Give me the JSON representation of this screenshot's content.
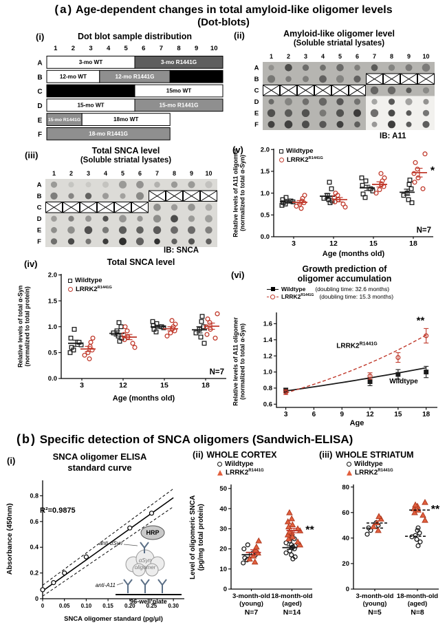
{
  "panel_a": {
    "tag": "(a)",
    "title": "Age-dependent changes in total amyloid-like oligomer levels",
    "subtitle": "(Dot-blots)",
    "i": {
      "tag": "(i)",
      "title": "Dot blot sample distribution",
      "cols": [
        "1",
        "2",
        "3",
        "4",
        "5",
        "6",
        "7",
        "8",
        "9",
        "10"
      ],
      "rows": [
        "A",
        "B",
        "C",
        "D",
        "E",
        "F"
      ],
      "blocks": [
        {
          "row": 0,
          "c1": 1,
          "c2": 5,
          "fill": "white",
          "text": "3-mo WT"
        },
        {
          "row": 0,
          "c1": 6,
          "c2": 10,
          "fill": "darkgray",
          "text": "3-mo R1441G"
        },
        {
          "row": 1,
          "c1": 1,
          "c2": 3,
          "fill": "white",
          "text": "12-mo WT"
        },
        {
          "row": 1,
          "c1": 4,
          "c2": 7,
          "fill": "gray",
          "text": "12-mo R1441G"
        },
        {
          "row": 1,
          "c1": 8,
          "c2": 10,
          "fill": "black",
          "text": ""
        },
        {
          "row": 2,
          "c1": 1,
          "c2": 5,
          "fill": "black",
          "text": ""
        },
        {
          "row": 2,
          "c1": 6,
          "c2": 10,
          "fill": "white",
          "text": "15mo WT"
        },
        {
          "row": 3,
          "c1": 1,
          "c2": 5,
          "fill": "white",
          "text": "15-mo WT"
        },
        {
          "row": 3,
          "c1": 6,
          "c2": 10,
          "fill": "gray",
          "text": "15-mo R1441G"
        },
        {
          "row": 4,
          "c1": 1,
          "c2": 2,
          "fill": "gray",
          "text": "15-mo R1441G"
        },
        {
          "row": 4,
          "c1": 3,
          "c2": 7,
          "fill": "white",
          "text": "18mo WT"
        },
        {
          "row": 5,
          "c1": 1,
          "c2": 7,
          "fill": "gray",
          "text": "18-mo R1441G"
        }
      ]
    },
    "ii": {
      "tag": "(ii)",
      "title": "Amyloid-like oligomer level",
      "subtitle": "(Soluble striatal lysates)",
      "ib_label": "IB: A11",
      "cols": [
        "1",
        "2",
        "3",
        "4",
        "5",
        "6",
        "7",
        "8",
        "9",
        "10"
      ],
      "rows": [
        "A",
        "B",
        "C",
        "D",
        "E",
        "F"
      ],
      "crossed": [
        "B7",
        "B8",
        "B9",
        "B10",
        "C1",
        "C2",
        "C3",
        "C4",
        "C5",
        "C6"
      ],
      "bg": "#b6b5b1",
      "row_shades": [
        0.45,
        0.5,
        0.42,
        0.5,
        0.55,
        0.62
      ],
      "seed": 7,
      "white_patch": {
        "c1": 7,
        "c2": 10,
        "r1": 3,
        "r2": 5
      }
    },
    "iii": {
      "tag": "(iii)",
      "title": "Total SNCA level",
      "subtitle": "(Soluble striatal lysates)",
      "ib_label": "IB: SNCA",
      "cols": [
        "1",
        "2",
        "3",
        "4",
        "5",
        "6",
        "7",
        "8",
        "9",
        "10"
      ],
      "rows": [
        "A",
        "B",
        "C",
        "D",
        "E",
        "F"
      ],
      "crossed": [
        "B7",
        "B8",
        "B9",
        "B10",
        "C1",
        "C2",
        "C3",
        "C4",
        "C5",
        "C6"
      ],
      "bg": "#dcdbd7",
      "row_shades": [
        0.3,
        0.5,
        0.45,
        0.5,
        0.55,
        0.68
      ],
      "seed": 13
    },
    "iv": {
      "tag": "(iv)",
      "title": "Total SNCA level",
      "ylabel1": "Relative levels of total α-Syn",
      "ylabel2": "(normalized to total protein)",
      "legend": {
        "wt": "Wildtype",
        "mut_base": "LRRK2",
        "mut_sup": "R1441G"
      },
      "chart_data": {
        "type": "scatter",
        "categories": [
          "3",
          "12",
          "15",
          "18"
        ],
        "xlabel": "Age (months old)",
        "ylim": [
          0,
          2.02
        ],
        "yticks": [
          0,
          0.5,
          1,
          1.5,
          2
        ],
        "ytick_labels": [
          "0.0",
          "0.5",
          "1.0",
          "1.5",
          "2.0"
        ],
        "n_label": "N=7",
        "series": [
          {
            "name": "Wildtype",
            "marker": "square",
            "color": "#1a1a1a",
            "filled": false,
            "groups": [
              [
                0.5,
                0.55,
                0.6,
                0.65,
                0.7,
                0.78,
                0.95
              ],
              [
                0.72,
                0.78,
                0.82,
                0.88,
                0.92,
                1.0,
                1.08
              ],
              [
                0.9,
                0.95,
                0.98,
                1.0,
                1.02,
                1.06,
                1.1
              ],
              [
                0.68,
                0.8,
                0.88,
                0.95,
                1.0,
                1.1,
                1.2
              ]
            ],
            "means": [
              0.68,
              0.87,
              1.0,
              0.94
            ],
            "sems": [
              0.06,
              0.05,
              0.03,
              0.06
            ]
          },
          {
            "name": "LRRK2 R1441G",
            "marker": "circle",
            "color": "#c0392b",
            "filled": false,
            "groups": [
              [
                0.38,
                0.45,
                0.5,
                0.55,
                0.62,
                0.7,
                0.78
              ],
              [
                0.6,
                0.68,
                0.75,
                0.8,
                0.85,
                0.92,
                1.0
              ],
              [
                0.82,
                0.88,
                0.92,
                0.96,
                1.0,
                1.05,
                1.12
              ],
              [
                0.78,
                0.85,
                0.95,
                1.0,
                1.08,
                1.15,
                1.25
              ]
            ],
            "means": [
              0.57,
              0.8,
              0.96,
              1.01
            ],
            "sems": [
              0.05,
              0.05,
              0.04,
              0.06
            ]
          }
        ]
      }
    },
    "v": {
      "tag": "(v)",
      "ylabel1": "Relative levels of A11 oligomer",
      "ylabel2": "(normalized to total α-Syn)",
      "legend": {
        "wt": "Wildtype",
        "mut_base": "LRRK2",
        "mut_sup": "R1441G"
      },
      "chart_data": {
        "type": "scatter",
        "categories": [
          "3",
          "12",
          "15",
          "18"
        ],
        "xlabel": "Age (months old)",
        "ylim": [
          0,
          2.02
        ],
        "yticks": [
          0,
          0.5,
          1,
          1.5,
          2
        ],
        "ytick_labels": [
          "0.0",
          "0.5",
          "1.0",
          "1.5",
          "2.0"
        ],
        "n_label": "N=7",
        "sig": {
          "text": "*",
          "y": 1.5,
          "dx": 28
        },
        "series": [
          {
            "name": "Wildtype",
            "marker": "square",
            "color": "#1a1a1a",
            "filled": false,
            "groups": [
              [
                0.72,
                0.75,
                0.78,
                0.8,
                0.82,
                0.85,
                0.9
              ],
              [
                0.78,
                0.82,
                0.85,
                0.88,
                0.95,
                1.1,
                1.25
              ],
              [
                0.9,
                0.98,
                1.05,
                1.1,
                1.18,
                1.28,
                1.35
              ],
              [
                0.78,
                0.85,
                0.95,
                1.0,
                1.1,
                1.2,
                1.3
              ]
            ],
            "means": [
              0.8,
              0.93,
              1.12,
              1.02
            ],
            "sems": [
              0.03,
              0.06,
              0.06,
              0.07
            ]
          },
          {
            "name": "LRRK2 R1441G",
            "marker": "circle",
            "color": "#c0392b",
            "filled": false,
            "groups": [
              [
                0.65,
                0.7,
                0.75,
                0.78,
                0.82,
                0.88,
                0.95
              ],
              [
                0.68,
                0.75,
                0.8,
                0.85,
                0.9,
                0.95,
                1.0
              ],
              [
                1.0,
                1.08,
                1.15,
                1.2,
                1.28,
                1.35,
                1.45
              ],
              [
                1.1,
                1.25,
                1.35,
                1.45,
                1.55,
                1.7,
                1.9
              ]
            ],
            "means": [
              0.79,
              0.85,
              1.2,
              1.47
            ],
            "sems": [
              0.04,
              0.05,
              0.06,
              0.1
            ]
          }
        ]
      }
    },
    "vi": {
      "tag": "(vi)",
      "title1": "Growth prediction of",
      "title2": "oligomer accumulation",
      "ylabel1": "Relative levels of A11 oligomer",
      "ylabel2": "(normalized to total α-Syn)",
      "legend": {
        "wt_name": "Wildtype",
        "wt_note": "(doubling time: 32.6 months)",
        "mut_base": "LRRK2",
        "mut_sup": "R1441G",
        "mut_note": "(doubling time: 15.3 months)"
      },
      "chart_data": {
        "type": "line",
        "xlabel": "Age",
        "xlim": [
          2,
          19.2
        ],
        "xticks": [
          3,
          6,
          9,
          12,
          15,
          18
        ],
        "xtick_labels": [
          "3",
          "6",
          "9",
          "12",
          "15",
          "18"
        ],
        "ylim": [
          0.56,
          1.74
        ],
        "yticks": [
          0.6,
          0.8,
          1.0,
          1.2,
          1.4,
          1.6
        ],
        "ytick_labels": [
          "0.6",
          "0.8",
          "1.0",
          "1.2",
          "1.4",
          "1.6"
        ],
        "sig": "**",
        "series": [
          {
            "name": "Wildtype",
            "color": "#1a1a1a",
            "marker": "square",
            "filled": true,
            "style": "solid",
            "curve": {
              "y0": 0.765,
              "x0": 3,
              "doubling": 32.6
            },
            "points": [
              [
                3,
                0.77,
                0.03
              ],
              [
                12,
                0.88,
                0.05
              ],
              [
                15,
                0.97,
                0.06
              ],
              [
                18,
                1.0,
                0.07
              ]
            ],
            "label": "Wildtype",
            "label_pos": [
              15.6,
              0.86
            ]
          },
          {
            "name": "LRRK2 R1441G",
            "color": "#c0392b",
            "marker": "circle",
            "filled": false,
            "style": "dashed",
            "curve": {
              "y0": 0.74,
              "x0": 3,
              "doubling": 15.3
            },
            "points": [
              [
                3,
                0.75,
                0.03
              ],
              [
                12,
                0.95,
                0.04
              ],
              [
                15,
                1.18,
                0.06
              ],
              [
                18,
                1.45,
                0.09
              ]
            ],
            "label_base": "LRRK2",
            "label_sup": "R1441G",
            "label_pos": [
              10.6,
              1.3
            ]
          }
        ]
      }
    }
  },
  "panel_b": {
    "tag": "(b)",
    "title": "Specific detection of SNCA oligomers (Sandwich-ELISA)",
    "i": {
      "tag": "(i)",
      "title1": "SNCA oligomer ELISA",
      "title2": "standard curve",
      "r2_label": "R²=0.9875",
      "ylabel": "Absorbance (450nm)",
      "schematic": {
        "hrp": "HRP",
        "anti_asyn": "anti-αSyn",
        "oligomer1": "αSyn",
        "oligomer2": "oligomer",
        "anti_a11": "anti-A11",
        "plate": "96-well plate"
      },
      "chart_data": {
        "type": "line+scatter",
        "xlabel": "SNCA oligomer standard (pg/μl)",
        "xlim": [
          0,
          0.325
        ],
        "xticks": [
          0,
          0.05,
          0.1,
          0.15,
          0.2,
          0.25,
          0.3
        ],
        "xtick_labels": [
          "0",
          "0.05",
          "0.10",
          "0.15",
          "0.20",
          "0.25",
          "0.30"
        ],
        "ylim": [
          0,
          0.92
        ],
        "yticks": [
          0,
          0.2,
          0.4,
          0.6,
          0.8
        ],
        "ytick_labels": [
          "0",
          "0.2",
          "0.4",
          "0.6",
          "0.8"
        ],
        "points": [
          [
            0,
            0.07
          ],
          [
            0.025,
            0.125
          ],
          [
            0.05,
            0.2
          ],
          [
            0.1,
            0.325
          ],
          [
            0.2,
            0.55
          ],
          [
            0.25,
            0.665
          ]
        ],
        "fit": [
          [
            0,
            0.06
          ],
          [
            0.3,
            0.785
          ]
        ],
        "band_upper": [
          [
            0,
            0.105
          ],
          [
            0.3,
            0.855
          ]
        ],
        "band_lower": [
          [
            0,
            0.02
          ],
          [
            0.3,
            0.715
          ]
        ]
      }
    },
    "ii": {
      "tag": "(ii)",
      "title": "WHOLE CORTEX",
      "ylabel1": "Level of oligomeric SNCA",
      "ylabel2": "(pg/mg total protein)",
      "legend": {
        "wt": "Wildtype",
        "mut_base": "LRRK2",
        "mut_sup": "R1441G"
      },
      "chart_data": {
        "type": "scatter",
        "categories": [
          [
            "3-month-old",
            "(young)"
          ],
          [
            "18-month-old",
            "(aged)"
          ]
        ],
        "cat_n": [
          "N=7",
          "N=14"
        ],
        "ylim": [
          0,
          52
        ],
        "yticks": [
          0,
          10,
          20,
          30,
          40,
          50
        ],
        "ytick_labels": [
          "0",
          "10",
          "20",
          "30",
          "40",
          "50"
        ],
        "sig": {
          "text": "**",
          "y": 29,
          "cat": 1,
          "dx": 26
        },
        "series": [
          {
            "name": "Wildtype",
            "marker": "circle",
            "color": "#1a1a1a",
            "filled": false,
            "groups": [
              [
                13,
                14.5,
                15.5,
                17,
                18,
                20,
                22
              ],
              [
                15,
                16,
                17,
                18,
                19,
                20,
                20.5,
                21,
                21.5,
                22,
                23,
                24,
                25,
                26
              ]
            ],
            "means": [
              17.1,
              20.6
            ],
            "sems": [
              1.2,
              0.9
            ]
          },
          {
            "name": "LRRK2 R1441G",
            "marker": "triangle",
            "color": "#e2603e",
            "stroke": "#b03a20",
            "filled": true,
            "groups": [
              [
                13.5,
                15,
                16.5,
                18,
                19.5,
                21,
                24
              ],
              [
                22,
                23.5,
                25,
                26,
                27,
                28,
                28.5,
                29,
                30,
                31,
                32,
                33.5,
                35,
                38
              ]
            ],
            "means": [
              18.2,
              29.1
            ],
            "sems": [
              1.4,
              1.1
            ],
            "mean_color": "#c0392b"
          }
        ]
      }
    },
    "iii": {
      "tag": "(iii)",
      "title": "WHOLE STRIATUM",
      "legend": {
        "wt": "Wildtype",
        "mut_base": "LRRK2",
        "mut_sup": "R1441G"
      },
      "chart_data": {
        "type": "scatter",
        "categories": [
          [
            "3-month-old",
            "(young)"
          ],
          [
            "18-month-old",
            "(aged)"
          ]
        ],
        "cat_n": [
          "N=5",
          "N=8"
        ],
        "ylim": [
          0,
          82
        ],
        "yticks": [
          0,
          20,
          40,
          60,
          80
        ],
        "ytick_labels": [
          "0",
          "20",
          "40",
          "60",
          "80"
        ],
        "sig": {
          "text": "**",
          "y": 62,
          "cat": 1,
          "dx": 26
        },
        "series": [
          {
            "name": "Wildtype",
            "marker": "circle",
            "color": "#1a1a1a",
            "filled": false,
            "groups": [
              [
                43,
                46,
                48,
                50,
                52
              ],
              [
                34,
                37,
                39,
                41,
                42,
                44,
                46,
                48
              ]
            ],
            "means": [
              47.8,
              41.4
            ],
            "mean_style": "dash",
            "mean_color": "#000000"
          },
          {
            "name": "LRRK2 R1441G",
            "marker": "triangle",
            "color": "#e2603e",
            "stroke": "#b03a20",
            "filled": true,
            "groups": [
              [
                46,
                49,
                52,
                55,
                57
              ],
              [
                54,
                58,
                60,
                62,
                63,
                65,
                66,
                68
              ]
            ],
            "means": [
              51.8,
              62
            ],
            "mean_style": "dash",
            "mean_color": "#000000"
          }
        ]
      }
    }
  }
}
